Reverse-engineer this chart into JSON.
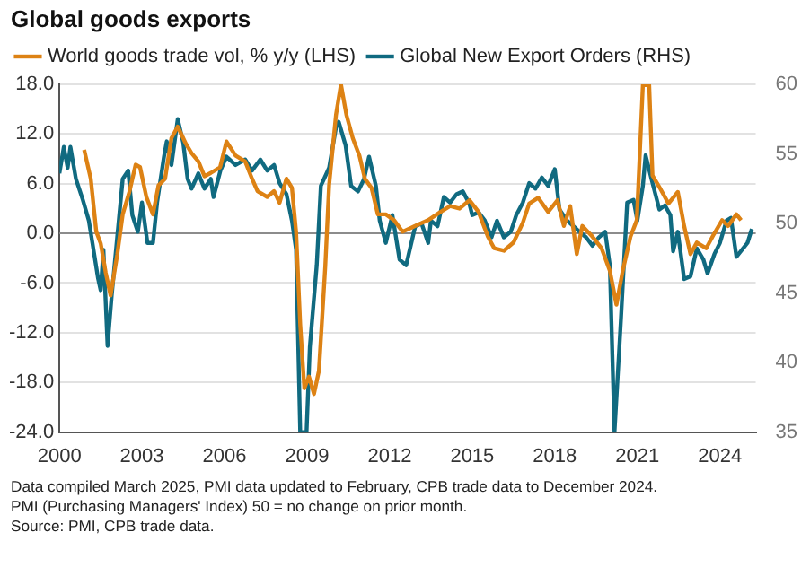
{
  "chart_data": {
    "type": "line",
    "title": "Global goods exports",
    "legend": "top",
    "grid": "y",
    "marker": "none",
    "line_style": "solid",
    "xlim": [
      2000,
      2025.3
    ],
    "xticks": [
      2000,
      2003,
      2006,
      2009,
      2012,
      2015,
      2018,
      2021,
      2024
    ],
    "ylim": [
      -24,
      18
    ],
    "yticks": [
      {
        "value": -24,
        "label": "-24.0"
      },
      {
        "value": -18,
        "label": "-18.0"
      },
      {
        "value": -12,
        "label": "-12.0"
      },
      {
        "value": -6,
        "label": "-6.0"
      },
      {
        "value": 0,
        "label": "0.0"
      },
      {
        "value": 6,
        "label": "6.0"
      },
      {
        "value": 12,
        "label": "12.0"
      },
      {
        "value": 18,
        "label": "18.0"
      }
    ],
    "y2lim": [
      35,
      60
    ],
    "y2ticks": [
      35,
      40,
      45,
      50,
      55,
      60
    ],
    "ref_lines": [
      {
        "axis": "y",
        "value": 0,
        "color": "#8c8c8c"
      }
    ],
    "series": [
      {
        "name": "World goods trade vol, % y/y (LHS)",
        "color": "#dd8214",
        "x": [
          2000.9,
          2001.14,
          2001.34,
          2001.5,
          2001.68,
          2001.86,
          2002.1,
          2002.3,
          2002.55,
          2002.77,
          2002.93,
          2003.16,
          2003.4,
          2003.6,
          2003.84,
          2004.07,
          2004.3,
          2004.6,
          2004.8,
          2005.05,
          2005.27,
          2005.5,
          2005.84,
          2006.07,
          2006.4,
          2006.75,
          2007.0,
          2007.2,
          2007.55,
          2007.8,
          2008.0,
          2008.25,
          2008.45,
          2008.6,
          2008.75,
          2008.9,
          2009.07,
          2009.25,
          2009.43,
          2009.66,
          2009.8,
          2010.05,
          2010.23,
          2010.43,
          2010.66,
          2010.9,
          2011.1,
          2011.34,
          2011.57,
          2011.86,
          2012.16,
          2012.47,
          2012.93,
          2013.4,
          2013.85,
          2014.2,
          2014.54,
          2014.9,
          2015.23,
          2015.57,
          2015.8,
          2016.15,
          2016.5,
          2016.84,
          2017.07,
          2017.4,
          2017.76,
          2018.1,
          2018.33,
          2018.56,
          2018.8,
          2019.0,
          2019.37,
          2019.7,
          2020.0,
          2020.24,
          2020.47,
          2020.75,
          2020.98,
          2021.2,
          2021.43,
          2021.55,
          2021.85,
          2022.13,
          2022.47,
          2022.7,
          2022.93,
          2023.16,
          2023.5,
          2023.78,
          2024.08,
          2024.3,
          2024.6,
          2024.77
        ],
        "values": [
          10.1,
          6.6,
          0.2,
          -1.2,
          -4.7,
          -7.5,
          -2.6,
          2.3,
          5.1,
          8.3,
          8.0,
          4.4,
          2.3,
          5.8,
          6.6,
          11.5,
          12.9,
          10.8,
          9.7,
          8.7,
          6.9,
          7.3,
          8.0,
          11.1,
          9.4,
          8.7,
          6.6,
          5.1,
          4.4,
          5.1,
          3.7,
          6.6,
          5.5,
          0.2,
          -11,
          -18.7,
          -17.3,
          -19.4,
          -16.6,
          -4,
          5.8,
          14.3,
          18,
          14.3,
          11.5,
          9.4,
          6.6,
          5.5,
          2.3,
          2.3,
          1.6,
          0.2,
          0.9,
          1.6,
          2.6,
          3.3,
          3.0,
          4.0,
          2.6,
          -0.4,
          -1.8,
          -2.1,
          -1.1,
          1.3,
          3.6,
          4.3,
          2.6,
          4.0,
          0.9,
          3.3,
          -2.5,
          0.9,
          -0.4,
          -1.8,
          -4.5,
          -8.6,
          -4.5,
          -0.4,
          1.6,
          17.9,
          17.9,
          7.0,
          5.3,
          3.6,
          5.0,
          0.9,
          -2.5,
          -1.1,
          -1.8,
          -0.1,
          1.6,
          0.9,
          2.3,
          1.6
        ]
      },
      {
        "name": "Global New Export Orders (RHS)",
        "color": "#106a80",
        "axis": "y2",
        "x": [
          2000.0,
          2000.16,
          2000.3,
          2000.4,
          2000.6,
          2000.85,
          2001.07,
          2001.2,
          2001.4,
          2001.5,
          2001.6,
          2001.75,
          2001.9,
          2002.1,
          2002.3,
          2002.5,
          2002.65,
          2002.85,
          2003.0,
          2003.2,
          2003.4,
          2003.55,
          2003.8,
          2003.9,
          2004.07,
          2004.3,
          2004.5,
          2004.66,
          2004.8,
          2005.05,
          2005.27,
          2005.5,
          2005.6,
          2005.85,
          2006.07,
          2006.4,
          2006.75,
          2007.0,
          2007.3,
          2007.55,
          2007.8,
          2008.0,
          2008.25,
          2008.45,
          2008.6,
          2008.75,
          2008.98,
          2009.1,
          2009.35,
          2009.5,
          2009.8,
          2010.05,
          2010.15,
          2010.4,
          2010.6,
          2010.85,
          2011.07,
          2011.25,
          2011.5,
          2011.64,
          2011.86,
          2012.1,
          2012.36,
          2012.6,
          2012.93,
          2013.16,
          2013.4,
          2013.5,
          2013.74,
          2013.97,
          2014.2,
          2014.43,
          2014.66,
          2014.9,
          2015.0,
          2015.23,
          2015.46,
          2015.7,
          2015.9,
          2016.15,
          2016.4,
          2016.6,
          2016.84,
          2017.07,
          2017.3,
          2017.53,
          2017.76,
          2018.0,
          2018.17,
          2018.45,
          2018.68,
          2018.9,
          2019.14,
          2019.37,
          2019.6,
          2019.83,
          2020.0,
          2020.17,
          2020.4,
          2020.63,
          2020.86,
          2021.0,
          2021.2,
          2021.3,
          2021.55,
          2021.8,
          2022.0,
          2022.2,
          2022.3,
          2022.47,
          2022.7,
          2022.93,
          2023.16,
          2023.4,
          2023.55,
          2023.8,
          2024.0,
          2024.24,
          2024.4,
          2024.6,
          2024.84,
          2025.0,
          2025.16
        ],
        "values": [
          53.6,
          55.5,
          54.0,
          55.5,
          53.2,
          51.7,
          50.2,
          48.6,
          46.1,
          45.2,
          48.1,
          41.2,
          44.8,
          49.0,
          53.2,
          53.8,
          50.6,
          49.4,
          51.5,
          48.6,
          48.6,
          51.5,
          54.8,
          55.9,
          54.2,
          57.5,
          55.8,
          53.2,
          52.5,
          53.6,
          52.5,
          53.2,
          51.9,
          53.8,
          54.8,
          54.2,
          54.6,
          53.8,
          54.6,
          53.8,
          54.2,
          52.9,
          52.1,
          50.2,
          48.1,
          35,
          35,
          41.1,
          47,
          52.7,
          54,
          56.9,
          57.3,
          55.6,
          52.7,
          52.3,
          53.2,
          54.8,
          52.7,
          50.2,
          48.6,
          50.6,
          47.4,
          47.0,
          49.8,
          50.0,
          48.6,
          50.2,
          49.8,
          51.9,
          51.5,
          52.1,
          52.3,
          51.4,
          50.6,
          50.8,
          50.2,
          49.0,
          50.2,
          49.0,
          49.4,
          50.6,
          51.5,
          52.9,
          52.5,
          53.3,
          52.7,
          53.9,
          51.0,
          50.2,
          49.8,
          49.4,
          49.0,
          48.4,
          49.0,
          49.4,
          47.0,
          35,
          43,
          51.5,
          51.7,
          50.2,
          52.7,
          54.9,
          52.9,
          51.0,
          51.3,
          50.6,
          48.0,
          49.4,
          46.0,
          46.2,
          48.2,
          47.4,
          46.4,
          47.8,
          48.6,
          50.2,
          50.4,
          47.6,
          48.2,
          48.6,
          49.6
        ]
      }
    ],
    "annotations": [
      "Data compiled March 2025, PMI data updated to February, CPB trade data to December 2024.",
      "PMI (Purchasing Managers' Index) 50 = no change on prior month.",
      "Source: PMI, CPB trade data."
    ]
  }
}
